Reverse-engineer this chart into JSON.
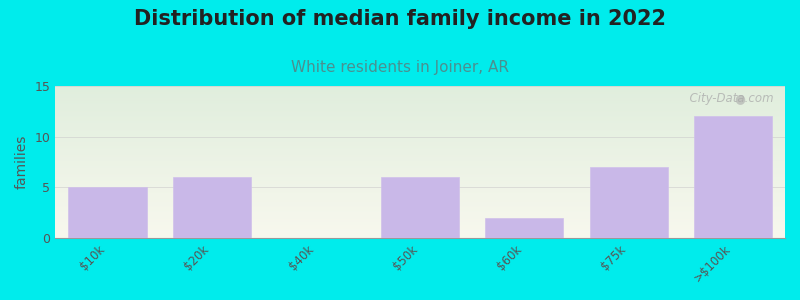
{
  "title": "Distribution of median family income in 2022",
  "subtitle": "White residents in Joiner, AR",
  "categories": [
    "$10k",
    "$20k",
    "$40k",
    "$50k",
    "$60k",
    "$75k",
    ">$100k"
  ],
  "values": [
    5,
    6,
    0,
    6,
    2,
    7,
    12
  ],
  "bar_color": "#c9b8e8",
  "bar_edge_color": "#d0c0ea",
  "background_color": "#00ecec",
  "ylabel": "families",
  "ylim": [
    0,
    15
  ],
  "yticks": [
    0,
    5,
    10,
    15
  ],
  "title_fontsize": 15,
  "subtitle_fontsize": 11,
  "subtitle_color": "#4a9090",
  "ylabel_fontsize": 10,
  "watermark": "  City-Data.com",
  "grid_color": "#cccccc",
  "grid_alpha": 0.6,
  "tick_color": "#555555",
  "title_color": "#222222"
}
